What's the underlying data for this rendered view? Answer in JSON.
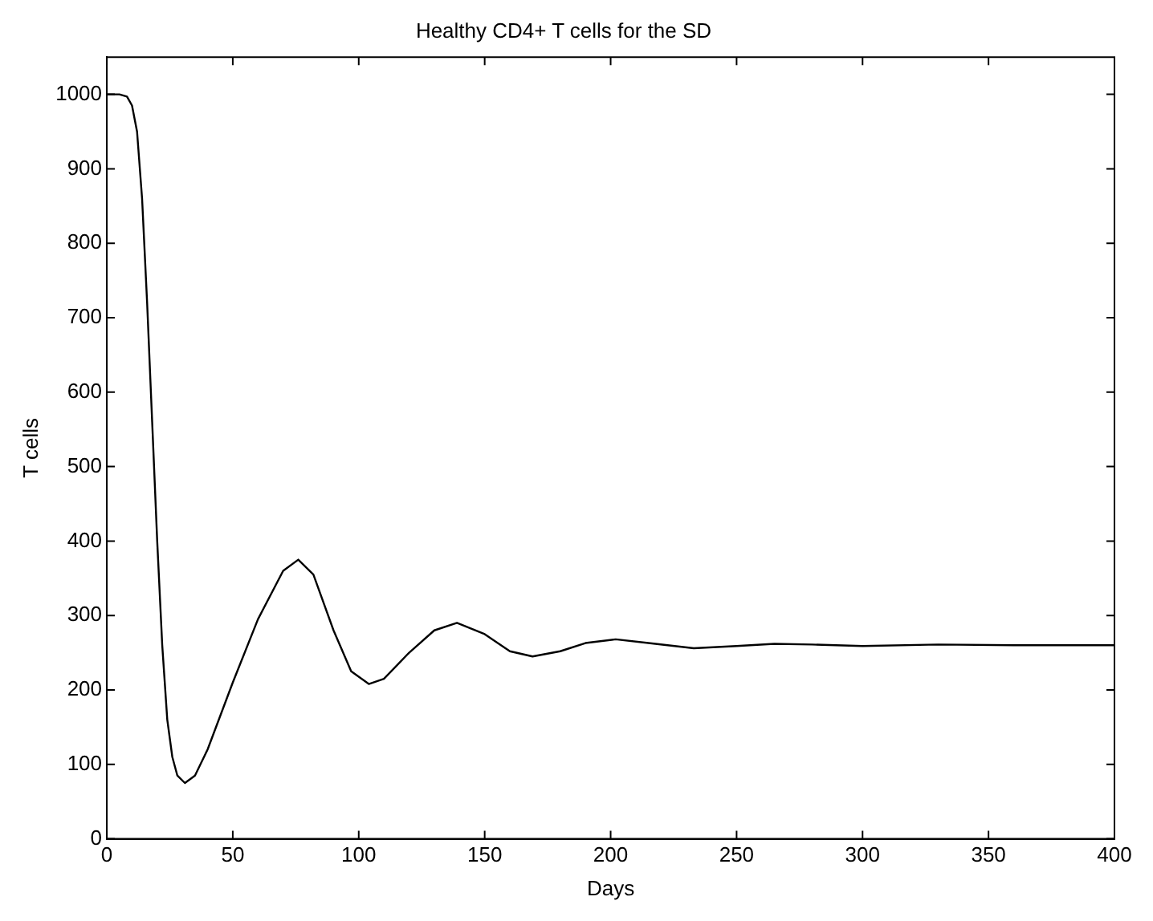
{
  "chart_data": {
    "type": "line",
    "title": "Healthy CD4+ T cells for the SD",
    "xlabel": "Days",
    "ylabel": "T cells",
    "series": [
      {
        "color": "#000000",
        "x": [
          0,
          5,
          8,
          10,
          12,
          14,
          16,
          18,
          20,
          22,
          24,
          26,
          28,
          31,
          35,
          40,
          50,
          60,
          70,
          76,
          82,
          90,
          97,
          104,
          110,
          120,
          130,
          139,
          150,
          160,
          169,
          180,
          190,
          202,
          215,
          233,
          250,
          265,
          280,
          300,
          330,
          360,
          400
        ],
        "values": [
          1000,
          1000,
          997,
          985,
          950,
          860,
          720,
          560,
          400,
          260,
          160,
          110,
          85,
          75,
          85,
          120,
          210,
          295,
          360,
          375,
          355,
          280,
          225,
          208,
          215,
          250,
          280,
          290,
          275,
          252,
          245,
          252,
          263,
          268,
          263,
          256,
          259,
          262,
          261,
          259,
          261,
          260,
          260
        ]
      }
    ],
    "xlim": [
      0,
      400
    ],
    "xticks": [
      0,
      50,
      100,
      150,
      200,
      250,
      300,
      350,
      400
    ],
    "ylim": [
      0,
      1050
    ],
    "yticks": [
      0,
      100,
      200,
      300,
      400,
      500,
      600,
      700,
      800,
      900,
      1000
    ],
    "grid": false,
    "legend": false,
    "marker": "none",
    "line_style": "solid"
  }
}
